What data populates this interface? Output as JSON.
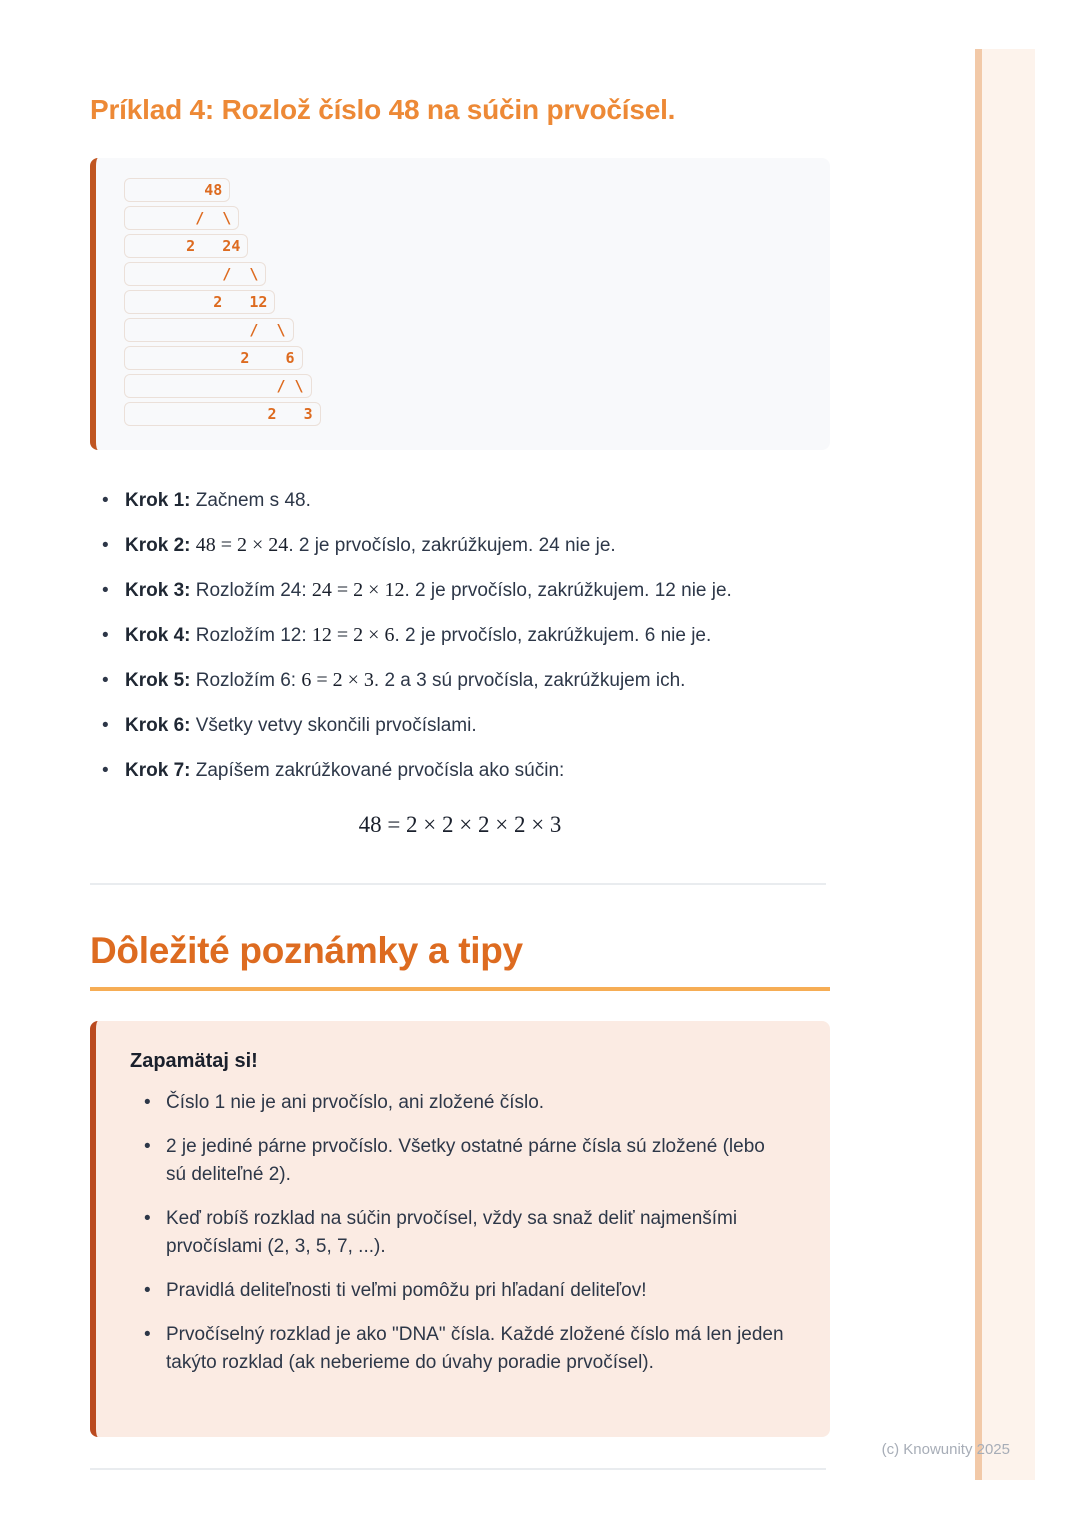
{
  "example": {
    "title": "Príklad 4: Rozlož číslo 48 na súčin prvočísel.",
    "tree_lines": [
      "        48",
      "       /  \\",
      "      2   24",
      "          /  \\",
      "         2   12",
      "             /  \\",
      "            2    6",
      "                / \\",
      "               2   3"
    ],
    "steps": [
      {
        "label": "Krok 1: ",
        "segments": [
          {
            "type": "text",
            "text": "Začnem s 48."
          }
        ]
      },
      {
        "label": "Krok 2: ",
        "segments": [
          {
            "type": "math",
            "text": "48 = 2 × 24"
          },
          {
            "type": "text",
            "text": ". 2 je prvočíslo, zakrúžkujem. 24 nie je."
          }
        ]
      },
      {
        "label": "Krok 3: ",
        "segments": [
          {
            "type": "text",
            "text": "Rozložím 24: "
          },
          {
            "type": "math",
            "text": "24 = 2 × 12"
          },
          {
            "type": "text",
            "text": ". 2 je prvočíslo, zakrúžkujem. 12 nie je."
          }
        ]
      },
      {
        "label": "Krok 4: ",
        "segments": [
          {
            "type": "text",
            "text": "Rozložím 12: "
          },
          {
            "type": "math",
            "text": "12 = 2 × 6"
          },
          {
            "type": "text",
            "text": ". 2 je prvočíslo, zakrúžkujem. 6 nie je."
          }
        ]
      },
      {
        "label": "Krok 5: ",
        "segments": [
          {
            "type": "text",
            "text": "Rozložím 6: "
          },
          {
            "type": "math",
            "text": "6 = 2 × 3"
          },
          {
            "type": "text",
            "text": ". 2 a 3 sú prvočísla, zakrúžkujem ich."
          }
        ]
      },
      {
        "label": "Krok 6: ",
        "segments": [
          {
            "type": "text",
            "text": "Všetky vetvy skončili prvočíslami."
          }
        ]
      },
      {
        "label": "Krok 7: ",
        "segments": [
          {
            "type": "text",
            "text": "Zapíšem zakrúžkované prvočísla ako súčin:"
          }
        ]
      }
    ],
    "formula": "48 = 2 × 2 × 2 × 2 × 3"
  },
  "notes": {
    "title": "Dôležité poznámky a tipy",
    "callout": {
      "title": "Zapamätaj si!",
      "tips": [
        "Číslo 1 nie je ani prvočíslo, ani zložené číslo.",
        "2 je jediné párne prvočíslo. Všetky ostatné párne čísla sú zložené (lebo sú deliteľné 2).",
        "Keď robíš rozklad na súčin prvočísel, vždy sa snaž deliť najmenšími prvočíslami (2, 3, 5, 7, ...).",
        "Pravidlá deliteľnosti ti veľmi pomôžu pri hľadaní deliteľov!",
        "Prvočíselný rozklad je ako \"DNA\" čísla. Každé zložené číslo má len jeden takýto rozklad (ak neberieme do úvahy poradie prvočísel)."
      ]
    }
  },
  "footer": {
    "credit": "(c) Knowunity 2025"
  },
  "colors": {
    "heading_accent": "#ED8936",
    "section_heading": "#DD6B20",
    "section_underline": "#F6AD55",
    "block_border": "#C05621",
    "callout_border": "#BA4A1F",
    "callout_background": "#FBEBE3",
    "code_background": "#F8F9FB",
    "tree_text": "#DD6B20",
    "body_text": "#2D3748",
    "footer_text": "#A7ADB7",
    "edge_strip_dark": "#F2C9A8",
    "edge_strip_light": "#FDF3EC"
  }
}
